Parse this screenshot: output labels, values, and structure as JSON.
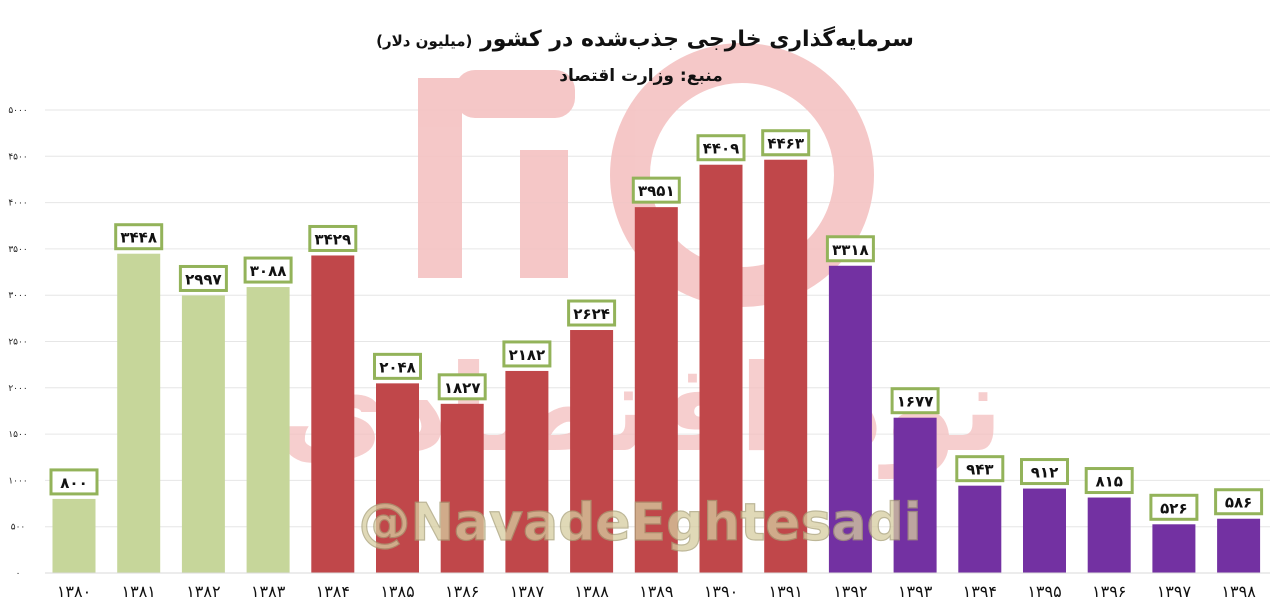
{
  "chart_data": {
    "type": "bar",
    "title": "سرمایه‌گذاری خارجی جذب‌شده در کشور",
    "title_unit": "(میلیون دلار)",
    "subtitle": "منبع: وزارت اقتصاد",
    "categories": [
      "۱۳۸۰",
      "۱۳۸۱",
      "۱۳۸۲",
      "۱۳۸۳",
      "۱۳۸۴",
      "۱۳۸۵",
      "۱۳۸۶",
      "۱۳۸۷",
      "۱۳۸۸",
      "۱۳۸۹",
      "۱۳۹۰",
      "۱۳۹۱",
      "۱۳۹۲",
      "۱۳۹۳",
      "۱۳۹۴",
      "۱۳۹۵",
      "۱۳۹۶",
      "۱۳۹۷",
      "۱۳۹۸"
    ],
    "values": [
      800,
      3448,
      2997,
      3088,
      3429,
      2048,
      1827,
      2182,
      2624,
      3951,
      4409,
      4463,
      3318,
      1677,
      943,
      912,
      815,
      526,
      586
    ],
    "value_labels": [
      "۸۰۰",
      "۳۴۴۸",
      "۲۹۹۷",
      "۳۰۸۸",
      "۳۴۲۹",
      "۲۰۴۸",
      "۱۸۲۷",
      "۲۱۸۲",
      "۲۶۲۴",
      "۳۹۵۱",
      "۴۴۰۹",
      "۴۴۶۳",
      "۳۳۱۸",
      "۱۶۷۷",
      "۹۴۳",
      "۹۱۲",
      "۸۱۵",
      "۵۲۶",
      "۵۸۶"
    ],
    "bar_colors": [
      "#c6d69a",
      "#c6d69a",
      "#c6d69a",
      "#c6d69a",
      "#c0474a",
      "#c0474a",
      "#c0474a",
      "#c0474a",
      "#c0474a",
      "#c0474a",
      "#c0474a",
      "#c0474a",
      "#7331a2",
      "#7331a2",
      "#7331a2",
      "#7331a2",
      "#7331a2",
      "#7331a2",
      "#7331a2"
    ],
    "label_border_color": "#93b35a",
    "ylim": [
      0,
      5000
    ],
    "yticks": [
      0,
      500,
      1000,
      1500,
      2000,
      2500,
      3000,
      3500,
      4000,
      4500,
      5000
    ],
    "ytick_labels": [
      "۰",
      "۵۰۰",
      "۱۰۰۰",
      "۱۵۰۰",
      "۲۰۰۰",
      "۲۵۰۰",
      "۳۰۰۰",
      "۳۵۰۰",
      "۴۰۰۰",
      "۴۵۰۰",
      "۵۰۰۰"
    ],
    "grid": true,
    "legend": "none"
  },
  "watermark": {
    "logo_text": "نود اقتصادی",
    "handle": "@NavadeEghtesadi",
    "logo_color": "#f4b9b9",
    "handle_color": "#d8cfa6"
  }
}
